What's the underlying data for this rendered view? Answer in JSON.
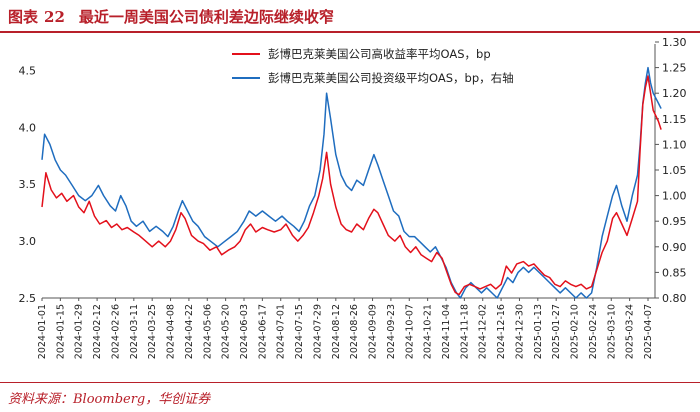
{
  "header": {
    "figure_label": "图表",
    "figure_number": "22",
    "title": "最近一周美国公司债利差边际继续收窄"
  },
  "footer": {
    "source": "资料来源：Bloomberg，华创证券"
  },
  "colors": {
    "accent": "#b8202a",
    "series_red": "#e3101b",
    "series_blue": "#1f6dbf"
  },
  "chart_data": {
    "type": "line",
    "legend_placement": "top-center",
    "grid": false,
    "x_ticks": [
      "2024-01-01",
      "2024-01-15",
      "2024-01-29",
      "2024-02-12",
      "2024-02-26",
      "2024-03-11",
      "2024-03-25",
      "2024-04-08",
      "2024-04-22",
      "2024-05-06",
      "2024-05-20",
      "2024-06-03",
      "2024-06-17",
      "2024-07-01",
      "2024-07-15",
      "2024-07-29",
      "2024-08-12",
      "2024-08-26",
      "2024-09-09",
      "2024-09-23",
      "2024-10-07",
      "2024-10-21",
      "2024-11-04",
      "2024-11-18",
      "2024-12-02",
      "2024-12-16",
      "2024-12-30",
      "2025-01-13",
      "2025-01-27",
      "2025-02-10",
      "2025-02-24",
      "2025-03-10",
      "2025-03-24",
      "2025-04-07"
    ],
    "y_left": {
      "lim": [
        2.5,
        4.75
      ],
      "ticks": [
        "2.5",
        "3.0",
        "3.5",
        "4.0",
        "4.5"
      ]
    },
    "y_right": {
      "lim": [
        0.8,
        1.3
      ],
      "ticks": [
        "0.80",
        "0.85",
        "0.90",
        "0.95",
        "1.00",
        "1.05",
        "1.10",
        "1.15",
        "1.20",
        "1.25",
        "1.30"
      ]
    },
    "series": [
      {
        "name": "彭博巴克莱美国公司高收益率平均OAS，bp",
        "axis": "left",
        "points": [
          [
            "2024-01-01",
            3.3
          ],
          [
            "2024-01-04",
            3.6
          ],
          [
            "2024-01-08",
            3.45
          ],
          [
            "2024-01-12",
            3.38
          ],
          [
            "2024-01-16",
            3.42
          ],
          [
            "2024-01-20",
            3.35
          ],
          [
            "2024-01-25",
            3.4
          ],
          [
            "2024-01-29",
            3.3
          ],
          [
            "2024-02-02",
            3.25
          ],
          [
            "2024-02-06",
            3.35
          ],
          [
            "2024-02-10",
            3.22
          ],
          [
            "2024-02-14",
            3.15
          ],
          [
            "2024-02-19",
            3.18
          ],
          [
            "2024-02-23",
            3.12
          ],
          [
            "2024-02-27",
            3.15
          ],
          [
            "2024-03-02",
            3.1
          ],
          [
            "2024-03-06",
            3.12
          ],
          [
            "2024-03-11",
            3.08
          ],
          [
            "2024-03-15",
            3.05
          ],
          [
            "2024-03-20",
            3.0
          ],
          [
            "2024-03-25",
            2.95
          ],
          [
            "2024-03-30",
            3.0
          ],
          [
            "2024-04-04",
            2.95
          ],
          [
            "2024-04-08",
            3.0
          ],
          [
            "2024-04-12",
            3.1
          ],
          [
            "2024-04-16",
            3.25
          ],
          [
            "2024-04-19",
            3.2
          ],
          [
            "2024-04-24",
            3.05
          ],
          [
            "2024-04-29",
            3.0
          ],
          [
            "2024-05-03",
            2.98
          ],
          [
            "2024-05-08",
            2.92
          ],
          [
            "2024-05-13",
            2.95
          ],
          [
            "2024-05-17",
            2.88
          ],
          [
            "2024-05-22",
            2.92
          ],
          [
            "2024-05-27",
            2.95
          ],
          [
            "2024-05-31",
            3.0
          ],
          [
            "2024-06-04",
            3.1
          ],
          [
            "2024-06-08",
            3.15
          ],
          [
            "2024-06-12",
            3.08
          ],
          [
            "2024-06-17",
            3.12
          ],
          [
            "2024-06-21",
            3.1
          ],
          [
            "2024-06-26",
            3.08
          ],
          [
            "2024-07-01",
            3.1
          ],
          [
            "2024-07-05",
            3.15
          ],
          [
            "2024-07-10",
            3.05
          ],
          [
            "2024-07-14",
            3.0
          ],
          [
            "2024-07-18",
            3.05
          ],
          [
            "2024-07-22",
            3.12
          ],
          [
            "2024-07-26",
            3.25
          ],
          [
            "2024-07-30",
            3.4
          ],
          [
            "2024-08-02",
            3.55
          ],
          [
            "2024-08-05",
            3.78
          ],
          [
            "2024-08-08",
            3.5
          ],
          [
            "2024-08-12",
            3.3
          ],
          [
            "2024-08-16",
            3.15
          ],
          [
            "2024-08-20",
            3.1
          ],
          [
            "2024-08-24",
            3.08
          ],
          [
            "2024-08-28",
            3.15
          ],
          [
            "2024-09-02",
            3.1
          ],
          [
            "2024-09-06",
            3.2
          ],
          [
            "2024-09-10",
            3.28
          ],
          [
            "2024-09-13",
            3.25
          ],
          [
            "2024-09-17",
            3.15
          ],
          [
            "2024-09-21",
            3.05
          ],
          [
            "2024-09-26",
            3.0
          ],
          [
            "2024-09-30",
            3.05
          ],
          [
            "2024-10-04",
            2.95
          ],
          [
            "2024-10-08",
            2.9
          ],
          [
            "2024-10-12",
            2.95
          ],
          [
            "2024-10-16",
            2.88
          ],
          [
            "2024-10-20",
            2.85
          ],
          [
            "2024-10-24",
            2.82
          ],
          [
            "2024-10-28",
            2.9
          ],
          [
            "2024-11-01",
            2.85
          ],
          [
            "2024-11-04",
            2.75
          ],
          [
            "2024-11-08",
            2.62
          ],
          [
            "2024-11-11",
            2.55
          ],
          [
            "2024-11-14",
            2.53
          ],
          [
            "2024-11-18",
            2.6
          ],
          [
            "2024-11-22",
            2.62
          ],
          [
            "2024-11-26",
            2.6
          ],
          [
            "2024-11-30",
            2.58
          ],
          [
            "2024-12-04",
            2.6
          ],
          [
            "2024-12-08",
            2.62
          ],
          [
            "2024-12-12",
            2.58
          ],
          [
            "2024-12-16",
            2.62
          ],
          [
            "2024-12-20",
            2.78
          ],
          [
            "2024-12-24",
            2.72
          ],
          [
            "2024-12-28",
            2.8
          ],
          [
            "2025-01-02",
            2.82
          ],
          [
            "2025-01-06",
            2.78
          ],
          [
            "2025-01-10",
            2.8
          ],
          [
            "2025-01-14",
            2.75
          ],
          [
            "2025-01-18",
            2.7
          ],
          [
            "2025-01-22",
            2.68
          ],
          [
            "2025-01-26",
            2.62
          ],
          [
            "2025-01-30",
            2.6
          ],
          [
            "2025-02-03",
            2.65
          ],
          [
            "2025-02-07",
            2.62
          ],
          [
            "2025-02-11",
            2.6
          ],
          [
            "2025-02-15",
            2.62
          ],
          [
            "2025-02-19",
            2.58
          ],
          [
            "2025-02-23",
            2.6
          ],
          [
            "2025-02-27",
            2.75
          ],
          [
            "2025-03-03",
            2.9
          ],
          [
            "2025-03-07",
            3.0
          ],
          [
            "2025-03-11",
            3.2
          ],
          [
            "2025-03-14",
            3.25
          ],
          [
            "2025-03-18",
            3.15
          ],
          [
            "2025-03-22",
            3.05
          ],
          [
            "2025-03-26",
            3.2
          ],
          [
            "2025-03-30",
            3.35
          ],
          [
            "2025-04-01",
            3.8
          ],
          [
            "2025-04-03",
            4.2
          ],
          [
            "2025-04-05",
            4.35
          ],
          [
            "2025-04-07",
            4.45
          ],
          [
            "2025-04-09",
            4.3
          ],
          [
            "2025-04-11",
            4.15
          ],
          [
            "2025-04-13",
            4.1
          ],
          [
            "2025-04-15",
            4.05
          ],
          [
            "2025-04-17",
            3.98
          ]
        ]
      },
      {
        "name": "彭博巴克莱美国公司投资级平均OAS，bp，右轴",
        "axis": "right",
        "points": [
          [
            "2024-01-01",
            1.07
          ],
          [
            "2024-01-03",
            1.12
          ],
          [
            "2024-01-07",
            1.1
          ],
          [
            "2024-01-11",
            1.07
          ],
          [
            "2024-01-15",
            1.05
          ],
          [
            "2024-01-19",
            1.04
          ],
          [
            "2024-01-24",
            1.02
          ],
          [
            "2024-01-29",
            1.0
          ],
          [
            "2024-02-03",
            0.99
          ],
          [
            "2024-02-08",
            1.0
          ],
          [
            "2024-02-13",
            1.02
          ],
          [
            "2024-02-17",
            1.0
          ],
          [
            "2024-02-22",
            0.98
          ],
          [
            "2024-02-26",
            0.97
          ],
          [
            "2024-03-01",
            1.0
          ],
          [
            "2024-03-05",
            0.98
          ],
          [
            "2024-03-09",
            0.95
          ],
          [
            "2024-03-13",
            0.94
          ],
          [
            "2024-03-18",
            0.95
          ],
          [
            "2024-03-23",
            0.93
          ],
          [
            "2024-03-28",
            0.94
          ],
          [
            "2024-04-02",
            0.93
          ],
          [
            "2024-04-06",
            0.92
          ],
          [
            "2024-04-10",
            0.94
          ],
          [
            "2024-04-14",
            0.97
          ],
          [
            "2024-04-17",
            0.99
          ],
          [
            "2024-04-21",
            0.97
          ],
          [
            "2024-04-25",
            0.95
          ],
          [
            "2024-04-29",
            0.94
          ],
          [
            "2024-05-04",
            0.92
          ],
          [
            "2024-05-09",
            0.91
          ],
          [
            "2024-05-14",
            0.9
          ],
          [
            "2024-05-19",
            0.91
          ],
          [
            "2024-05-24",
            0.92
          ],
          [
            "2024-05-29",
            0.93
          ],
          [
            "2024-06-03",
            0.95
          ],
          [
            "2024-06-07",
            0.97
          ],
          [
            "2024-06-12",
            0.96
          ],
          [
            "2024-06-17",
            0.97
          ],
          [
            "2024-06-22",
            0.96
          ],
          [
            "2024-06-27",
            0.95
          ],
          [
            "2024-07-02",
            0.96
          ],
          [
            "2024-07-06",
            0.95
          ],
          [
            "2024-07-11",
            0.94
          ],
          [
            "2024-07-15",
            0.93
          ],
          [
            "2024-07-19",
            0.95
          ],
          [
            "2024-07-23",
            0.98
          ],
          [
            "2024-07-27",
            1.0
          ],
          [
            "2024-07-31",
            1.05
          ],
          [
            "2024-08-03",
            1.12
          ],
          [
            "2024-08-05",
            1.2
          ],
          [
            "2024-08-08",
            1.15
          ],
          [
            "2024-08-12",
            1.08
          ],
          [
            "2024-08-16",
            1.04
          ],
          [
            "2024-08-20",
            1.02
          ],
          [
            "2024-08-24",
            1.01
          ],
          [
            "2024-08-28",
            1.03
          ],
          [
            "2024-09-02",
            1.02
          ],
          [
            "2024-09-06",
            1.05
          ],
          [
            "2024-09-10",
            1.08
          ],
          [
            "2024-09-13",
            1.06
          ],
          [
            "2024-09-17",
            1.03
          ],
          [
            "2024-09-21",
            1.0
          ],
          [
            "2024-09-25",
            0.97
          ],
          [
            "2024-09-29",
            0.96
          ],
          [
            "2024-10-03",
            0.93
          ],
          [
            "2024-10-07",
            0.92
          ],
          [
            "2024-10-11",
            0.92
          ],
          [
            "2024-10-15",
            0.91
          ],
          [
            "2024-10-19",
            0.9
          ],
          [
            "2024-10-23",
            0.89
          ],
          [
            "2024-10-27",
            0.9
          ],
          [
            "2024-10-31",
            0.88
          ],
          [
            "2024-11-04",
            0.86
          ],
          [
            "2024-11-08",
            0.83
          ],
          [
            "2024-11-12",
            0.81
          ],
          [
            "2024-11-15",
            0.8
          ],
          [
            "2024-11-19",
            0.82
          ],
          [
            "2024-11-23",
            0.83
          ],
          [
            "2024-11-27",
            0.82
          ],
          [
            "2024-12-01",
            0.81
          ],
          [
            "2024-12-05",
            0.82
          ],
          [
            "2024-12-09",
            0.81
          ],
          [
            "2024-12-13",
            0.8
          ],
          [
            "2024-12-17",
            0.82
          ],
          [
            "2024-12-21",
            0.84
          ],
          [
            "2024-12-25",
            0.83
          ],
          [
            "2024-12-29",
            0.85
          ],
          [
            "2025-01-02",
            0.86
          ],
          [
            "2025-01-06",
            0.85
          ],
          [
            "2025-01-10",
            0.86
          ],
          [
            "2025-01-14",
            0.85
          ],
          [
            "2025-01-18",
            0.84
          ],
          [
            "2025-01-22",
            0.83
          ],
          [
            "2025-01-26",
            0.82
          ],
          [
            "2025-01-30",
            0.81
          ],
          [
            "2025-02-03",
            0.82
          ],
          [
            "2025-02-07",
            0.81
          ],
          [
            "2025-02-11",
            0.8
          ],
          [
            "2025-02-15",
            0.81
          ],
          [
            "2025-02-19",
            0.8
          ],
          [
            "2025-02-23",
            0.81
          ],
          [
            "2025-02-27",
            0.86
          ],
          [
            "2025-03-03",
            0.92
          ],
          [
            "2025-03-07",
            0.96
          ],
          [
            "2025-03-11",
            1.0
          ],
          [
            "2025-03-14",
            1.02
          ],
          [
            "2025-03-18",
            0.98
          ],
          [
            "2025-03-22",
            0.95
          ],
          [
            "2025-03-26",
            1.0
          ],
          [
            "2025-03-30",
            1.04
          ],
          [
            "2025-04-01",
            1.1
          ],
          [
            "2025-04-03",
            1.18
          ],
          [
            "2025-04-05",
            1.22
          ],
          [
            "2025-04-07",
            1.25
          ],
          [
            "2025-04-09",
            1.22
          ],
          [
            "2025-04-11",
            1.2
          ],
          [
            "2025-04-13",
            1.19
          ],
          [
            "2025-04-15",
            1.18
          ],
          [
            "2025-04-17",
            1.17
          ]
        ]
      }
    ]
  }
}
